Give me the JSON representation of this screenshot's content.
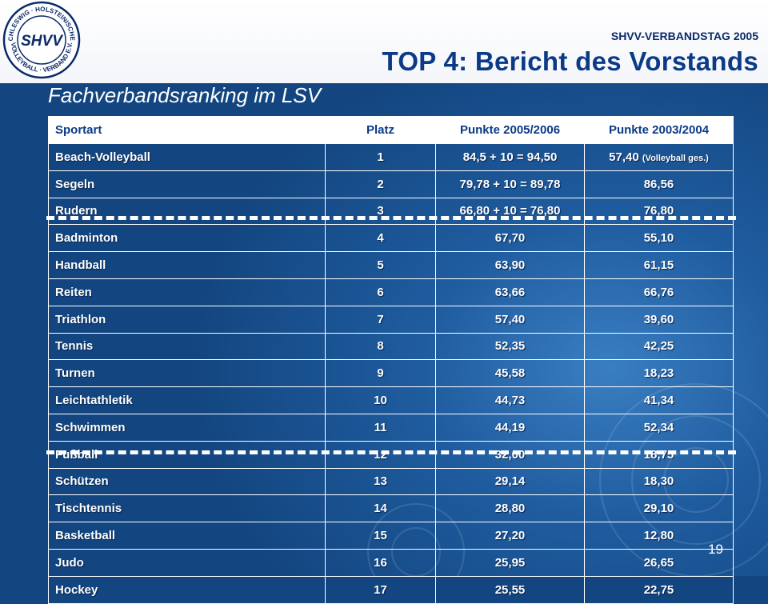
{
  "logo": {
    "name": "SHVV",
    "ring_top": "SCHLESWIG · HOLSTEINISCHER",
    "ring_bottom": "VOLLEYBALL · VERBAND E.V."
  },
  "header": {
    "event": "SHVV-VERBANDSTAG 2005",
    "title": "TOP 4: Bericht des Vorstands"
  },
  "subtitle": "Fachverbandsranking im LSV",
  "table": {
    "headers": [
      "Sportart",
      "Platz",
      "Punkte 2005/2006",
      "Punkte 2003/2004"
    ],
    "rows": [
      {
        "sport": "Beach-Volleyball",
        "platz": "1",
        "p2005": "84,5 + 10 = 94,50",
        "p2003": "57,40",
        "p2003_note": "(Volleyball ges.)"
      },
      {
        "sport": "Segeln",
        "platz": "2",
        "p2005": "79,78 + 10 = 89,78",
        "p2003": "86,56",
        "p2003_note": ""
      },
      {
        "sport": "Rudern",
        "platz": "3",
        "p2005": "66,80 + 10 = 76,80",
        "p2003": "76,80",
        "p2003_note": ""
      },
      {
        "sport": "Badminton",
        "platz": "4",
        "p2005": "67,70",
        "p2003": "55,10",
        "p2003_note": ""
      },
      {
        "sport": "Handball",
        "platz": "5",
        "p2005": "63,90",
        "p2003": "61,15",
        "p2003_note": ""
      },
      {
        "sport": "Reiten",
        "platz": "6",
        "p2005": "63,66",
        "p2003": "66,76",
        "p2003_note": ""
      },
      {
        "sport": "Triathlon",
        "platz": "7",
        "p2005": "57,40",
        "p2003": "39,60",
        "p2003_note": ""
      },
      {
        "sport": "Tennis",
        "platz": "8",
        "p2005": "52,35",
        "p2003": "42,25",
        "p2003_note": ""
      },
      {
        "sport": "Turnen",
        "platz": "9",
        "p2005": "45,58",
        "p2003": "18,23",
        "p2003_note": ""
      },
      {
        "sport": "Leichtathletik",
        "platz": "10",
        "p2005": "44,73",
        "p2003": "41,34",
        "p2003_note": ""
      },
      {
        "sport": "Schwimmen",
        "platz": "11",
        "p2005": "44,19",
        "p2003": "52,34",
        "p2003_note": ""
      },
      {
        "sport": "Fußball",
        "platz": "12",
        "p2005": "32,00",
        "p2003": "18,75",
        "p2003_note": ""
      },
      {
        "sport": "Schützen",
        "platz": "13",
        "p2005": "29,14",
        "p2003": "18,30",
        "p2003_note": ""
      },
      {
        "sport": "Tischtennis",
        "platz": "14",
        "p2005": "28,80",
        "p2003": "29,10",
        "p2003_note": ""
      },
      {
        "sport": "Basketball",
        "platz": "15",
        "p2005": "27,20",
        "p2003": "12,80",
        "p2003_note": ""
      },
      {
        "sport": "Judo",
        "platz": "16",
        "p2005": "25,95",
        "p2003": "26,65",
        "p2003_note": ""
      },
      {
        "sport": "Hockey",
        "platz": "17",
        "p2005": "25,55",
        "p2003": "22,75",
        "p2003_note": ""
      }
    ]
  },
  "page_number": "19",
  "colors": {
    "title": "#0b3a86",
    "background": "#1f5c9f",
    "text": "#ffffff"
  }
}
